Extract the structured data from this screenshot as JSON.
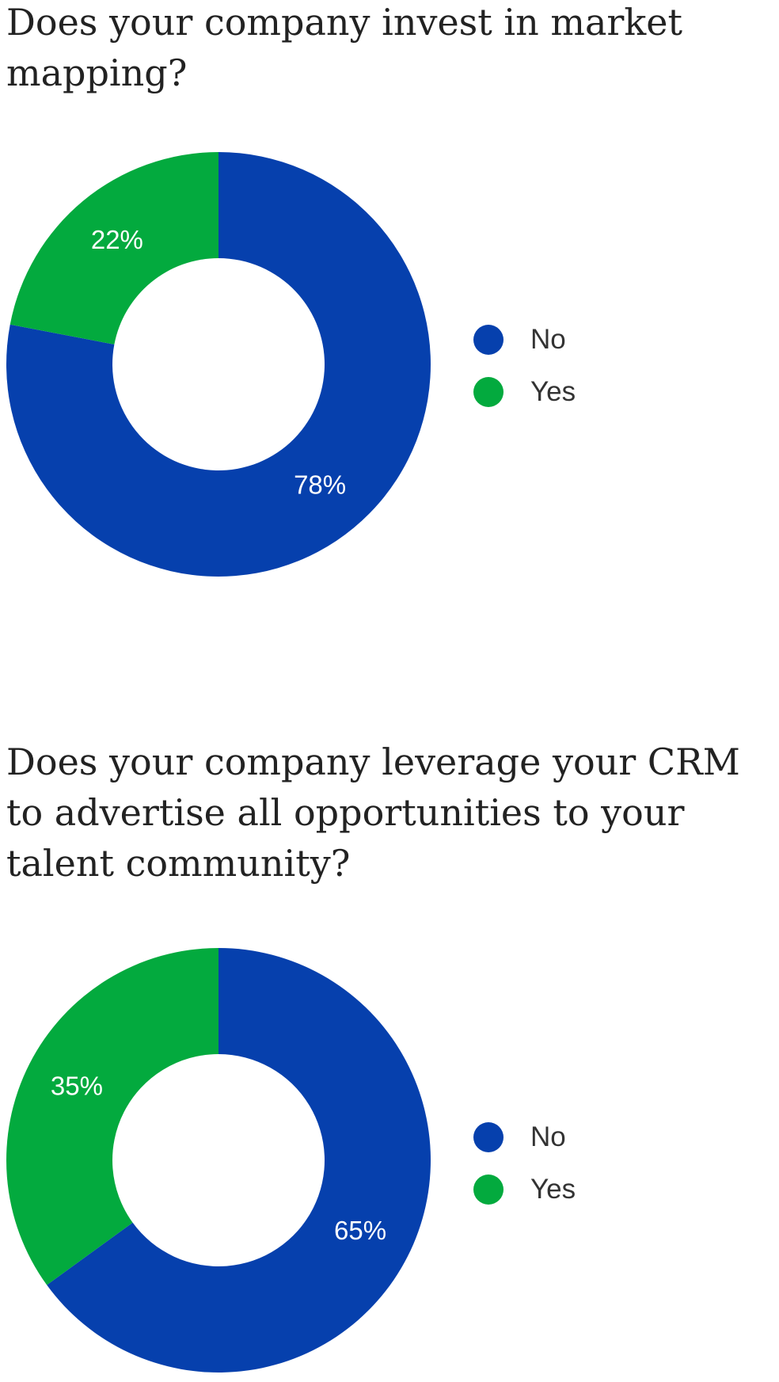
{
  "colors": {
    "No": "#0640ad",
    "Yes": "#03aa3e"
  },
  "charts": [
    {
      "title": "Does your company invest in market mapping?",
      "legend": [
        {
          "label": "No"
        },
        {
          "label": "Yes"
        }
      ]
    },
    {
      "title": "Does your company leverage your CRM to advertise all opportunities to your talent community?",
      "legend": [
        {
          "label": "No"
        },
        {
          "label": "Yes"
        }
      ]
    }
  ],
  "chart_data": [
    {
      "type": "pie",
      "title": "Does your company invest in market mapping?",
      "categories": [
        "No",
        "Yes"
      ],
      "values": [
        78,
        22
      ],
      "labels": [
        "78%",
        "22%"
      ],
      "donut": true,
      "legend_position": "right"
    },
    {
      "type": "pie",
      "title": "Does your company leverage your CRM to advertise all opportunities to your talent community?",
      "categories": [
        "No",
        "Yes"
      ],
      "values": [
        65,
        35
      ],
      "labels": [
        "65%",
        "35%"
      ],
      "donut": true,
      "legend_position": "right"
    }
  ]
}
